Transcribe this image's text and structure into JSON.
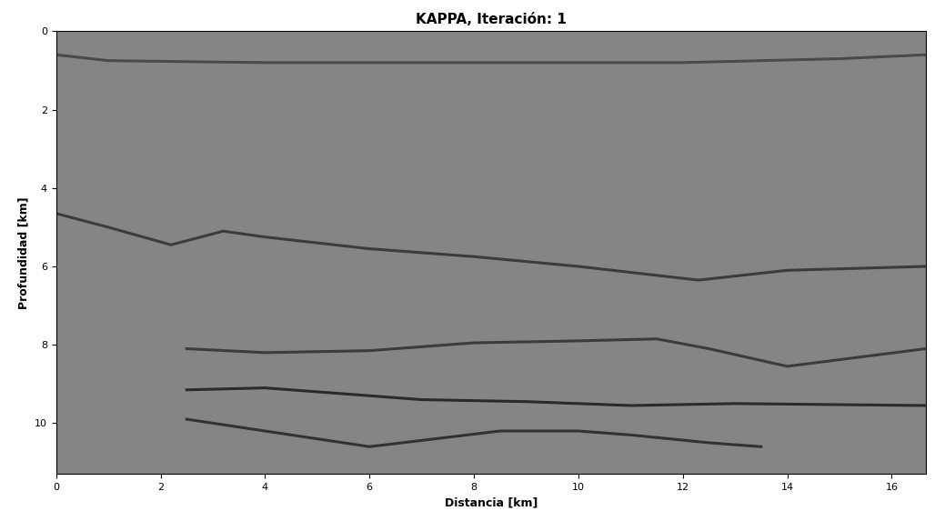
{
  "chart_data": {
    "type": "line",
    "title": "KAPPA, Iteración: 1",
    "x_label": "Distancia [km]",
    "y_label": "Profundidad [km]",
    "xlim": [
      0,
      16.65
    ],
    "ylim": [
      11.3,
      0
    ],
    "xticks": [
      0,
      2,
      4,
      6,
      8,
      10,
      12,
      14,
      16
    ],
    "yticks": [
      0,
      2,
      4,
      6,
      8,
      10
    ],
    "grid": false,
    "series": [
      {
        "color": "#4a4a4a",
        "x": [
          0,
          1,
          4,
          8,
          12,
          15,
          16.65
        ],
        "values": [
          0.6,
          0.75,
          0.8,
          0.8,
          0.8,
          0.7,
          0.6
        ]
      },
      {
        "color": "#3c3c3c",
        "x": [
          0,
          1,
          2.2,
          3.2,
          4,
          6,
          8,
          10,
          12.3,
          14,
          16.65
        ],
        "values": [
          4.65,
          5.0,
          5.45,
          5.1,
          5.25,
          5.55,
          5.75,
          6.0,
          6.35,
          6.1,
          6.0
        ]
      },
      {
        "color": "#3c3c3c",
        "x": [
          2.5,
          4,
          6,
          8,
          10,
          11.5,
          12.5,
          14,
          16.65
        ],
        "values": [
          8.1,
          8.2,
          8.15,
          7.95,
          7.9,
          7.85,
          8.1,
          8.55,
          8.1
        ]
      },
      {
        "color": "#2a2a2a",
        "x": [
          2.5,
          4,
          5,
          7,
          9,
          11,
          13,
          16.65
        ],
        "values": [
          9.15,
          9.1,
          9.2,
          9.4,
          9.45,
          9.55,
          9.5,
          9.55
        ]
      },
      {
        "color": "#333333",
        "x": [
          2.5,
          4,
          6,
          8.5,
          10,
          11,
          12.5,
          13.5
        ],
        "values": [
          9.9,
          10.2,
          10.6,
          10.2,
          10.2,
          10.3,
          10.5,
          10.6
        ]
      }
    ]
  }
}
